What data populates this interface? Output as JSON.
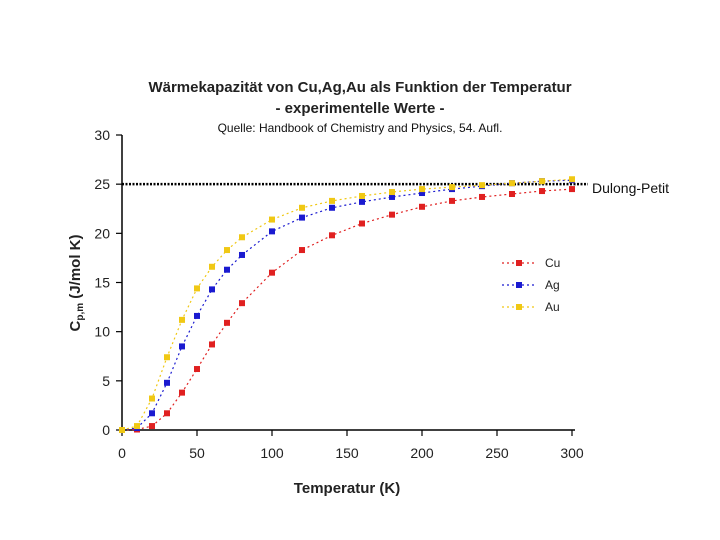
{
  "chart_data": {
    "type": "line",
    "title": "Wärmekapazität von Cu,Ag,Au als Funktion der Temperatur",
    "subtitle": "- experimentelle Werte -",
    "source": "Quelle: Handbook of Chemistry and Physics, 54. Aufl.",
    "xlabel": "Temperatur (K)",
    "ylabel": "C",
    "ylabel_sub": "p,m",
    "ylabel_unit": " (J/mol K)",
    "xlim": [
      0,
      300
    ],
    "ylim": [
      0,
      30
    ],
    "xticks": [
      "0",
      "50",
      "100",
      "150",
      "200",
      "250",
      "300"
    ],
    "yticks": [
      "0",
      "5",
      "10",
      "15",
      "20",
      "25",
      "30"
    ],
    "grid": false,
    "legend_position": "right",
    "series": [
      {
        "name": "Cu",
        "color": "#e02020",
        "x": [
          0,
          10,
          20,
          30,
          40,
          50,
          60,
          70,
          80,
          100,
          120,
          140,
          160,
          180,
          200,
          220,
          240,
          260,
          280,
          300
        ],
        "y": [
          0,
          0.05,
          0.4,
          1.7,
          3.8,
          6.2,
          8.7,
          10.9,
          12.9,
          16.0,
          18.3,
          19.8,
          21.0,
          21.9,
          22.7,
          23.3,
          23.7,
          24.0,
          24.3,
          24.5
        ]
      },
      {
        "name": "Ag",
        "color": "#1a1ad0",
        "x": [
          0,
          10,
          20,
          30,
          40,
          50,
          60,
          70,
          80,
          100,
          120,
          140,
          160,
          180,
          200,
          220,
          240,
          260,
          280,
          300
        ],
        "y": [
          0,
          0.2,
          1.7,
          4.8,
          8.5,
          11.6,
          14.3,
          16.3,
          17.8,
          20.2,
          21.6,
          22.6,
          23.2,
          23.7,
          24.1,
          24.5,
          24.8,
          25.1,
          25.3,
          25.4
        ]
      },
      {
        "name": "Au",
        "color": "#f0c814",
        "x": [
          0,
          10,
          20,
          30,
          40,
          50,
          60,
          70,
          80,
          100,
          120,
          140,
          160,
          180,
          200,
          220,
          240,
          260,
          280,
          300
        ],
        "y": [
          0,
          0.4,
          3.2,
          7.4,
          11.2,
          14.4,
          16.6,
          18.3,
          19.6,
          21.4,
          22.6,
          23.3,
          23.8,
          24.2,
          24.5,
          24.7,
          24.9,
          25.1,
          25.3,
          25.5
        ]
      }
    ],
    "reference_line": {
      "y": 25,
      "label": "Dulong-Petit",
      "color": "#000000"
    }
  }
}
